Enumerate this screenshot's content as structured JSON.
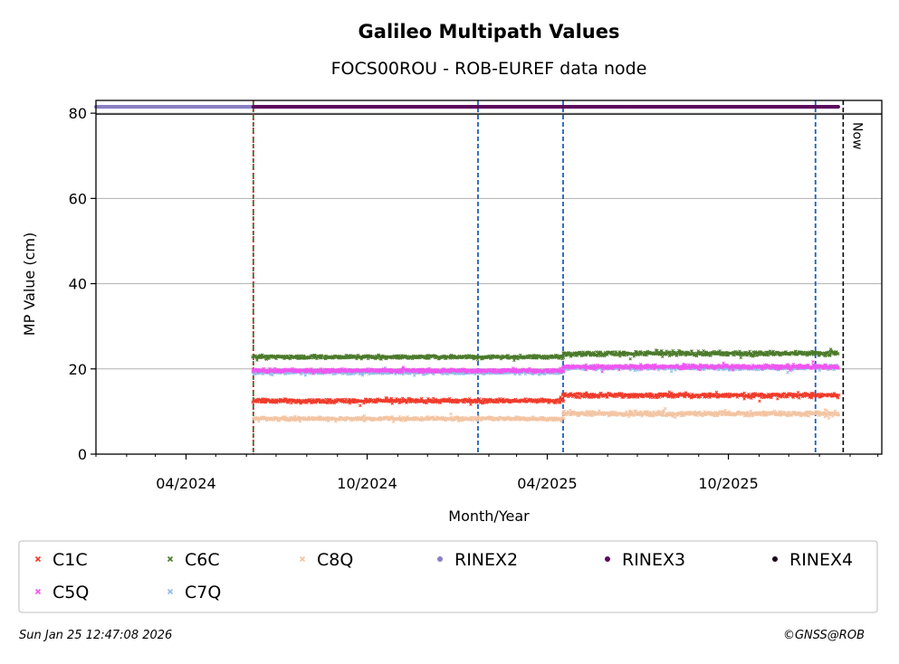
{
  "chart_data": {
    "type": "scatter",
    "title": "Galileo Multipath Values",
    "subtitle": "FOCS00ROU - ROB-EUREF data node",
    "xlabel": "Month/Year",
    "ylabel": "MP Value (cm)",
    "ylim": [
      0,
      83
    ],
    "xlim": [
      "2024-01-01",
      "2026-03-05"
    ],
    "x_ticks": [
      "04/2024",
      "10/2024",
      "04/2025",
      "10/2025"
    ],
    "y_ticks": [
      0,
      20,
      40,
      60,
      80
    ],
    "grid": "horizontal",
    "now_label": "Now",
    "now_date": "2026-01-25",
    "event_lines": [
      {
        "date": "2024-06-08",
        "color": "#2a7d2a",
        "style": "dashed"
      },
      {
        "date": "2024-06-08",
        "color": "#d62728",
        "style": "dotted"
      },
      {
        "date": "2025-01-21",
        "color": "#1f5fbf",
        "style": "dashed"
      },
      {
        "date": "2025-04-17",
        "color": "#1f5fbf",
        "style": "dashed"
      },
      {
        "date": "2025-12-28",
        "color": "#1f5fbf",
        "style": "dashed"
      }
    ],
    "series": [
      {
        "name": "C1C",
        "marker": "x",
        "color": "#f03a2a",
        "segments": [
          {
            "start": "2024-06-08",
            "end": "2025-04-17",
            "mean": 12.5,
            "spread": 0.7
          },
          {
            "start": "2025-04-17",
            "end": "2026-01-20",
            "mean": 13.8,
            "spread": 0.8
          }
        ]
      },
      {
        "name": "C5Q",
        "marker": "x",
        "color": "#f055f0",
        "segments": [
          {
            "start": "2024-06-08",
            "end": "2025-04-17",
            "mean": 19.6,
            "spread": 0.6
          },
          {
            "start": "2025-04-17",
            "end": "2026-01-20",
            "mean": 20.5,
            "spread": 0.7
          }
        ]
      },
      {
        "name": "C6C",
        "marker": "x",
        "color": "#4a7a2a",
        "segments": [
          {
            "start": "2024-06-08",
            "end": "2025-04-17",
            "mean": 22.8,
            "spread": 0.6
          },
          {
            "start": "2025-04-17",
            "end": "2026-01-20",
            "mean": 23.6,
            "spread": 0.8
          }
        ]
      },
      {
        "name": "C7Q",
        "marker": "x",
        "color": "#92bce6",
        "segments": [
          {
            "start": "2024-06-08",
            "end": "2025-04-17",
            "mean": 19.2,
            "spread": 0.6
          },
          {
            "start": "2025-04-17",
            "end": "2026-01-20",
            "mean": 20.3,
            "spread": 0.7
          }
        ]
      },
      {
        "name": "C8Q",
        "marker": "x",
        "color": "#f3c4a2",
        "segments": [
          {
            "start": "2024-06-08",
            "end": "2025-04-17",
            "mean": 8.3,
            "spread": 0.6
          },
          {
            "start": "2025-04-17",
            "end": "2026-01-20",
            "mean": 9.5,
            "spread": 0.8
          }
        ]
      },
      {
        "name": "RINEX2",
        "marker": "dot",
        "color": "#8a7fc4",
        "segments": [
          {
            "start": "2024-01-01",
            "end": "2024-06-08",
            "value": 81.5
          }
        ]
      },
      {
        "name": "RINEX3",
        "marker": "dot",
        "color": "#5c0a5c",
        "segments": [
          {
            "start": "2024-06-08",
            "end": "2026-01-20",
            "value": 81.5
          }
        ]
      },
      {
        "name": "RINEX4",
        "marker": "dot",
        "color": "#1a0318",
        "segments": []
      }
    ],
    "legend_order": [
      "C1C",
      "C6C",
      "C8Q",
      "RINEX2",
      "RINEX3",
      "RINEX4",
      "C5Q",
      "C7Q"
    ],
    "legend_position": "bottom"
  },
  "footer": {
    "timestamp": "Sun Jan 25 12:47:08 2026",
    "credit": "©GNSS@ROB"
  }
}
